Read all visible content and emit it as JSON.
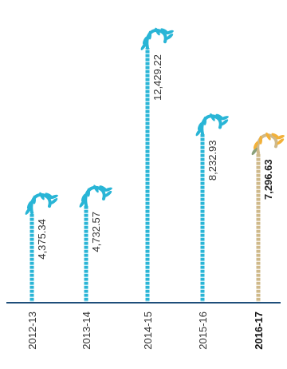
{
  "chart_data": {
    "type": "bar",
    "categories": [
      "2012-13",
      "2013-14",
      "2014-15",
      "2015-16",
      "2016-17"
    ],
    "values": [
      4375.34,
      4732.57,
      12429.22,
      8232.93,
      7296.63
    ],
    "value_labels": [
      "4,375.34",
      "4,732.57",
      "12,429.22",
      "8,232.93",
      "7,296.63"
    ],
    "highlight_index": 4,
    "ylim": [
      0,
      14000
    ],
    "colors": {
      "bar": "#29b5d6",
      "bar_highlight": "#cfb98a",
      "leaf_highlight": "#f2b13a",
      "leaf_highlight_alt": "#8aa07a",
      "axis": "#1e4e7a"
    }
  }
}
